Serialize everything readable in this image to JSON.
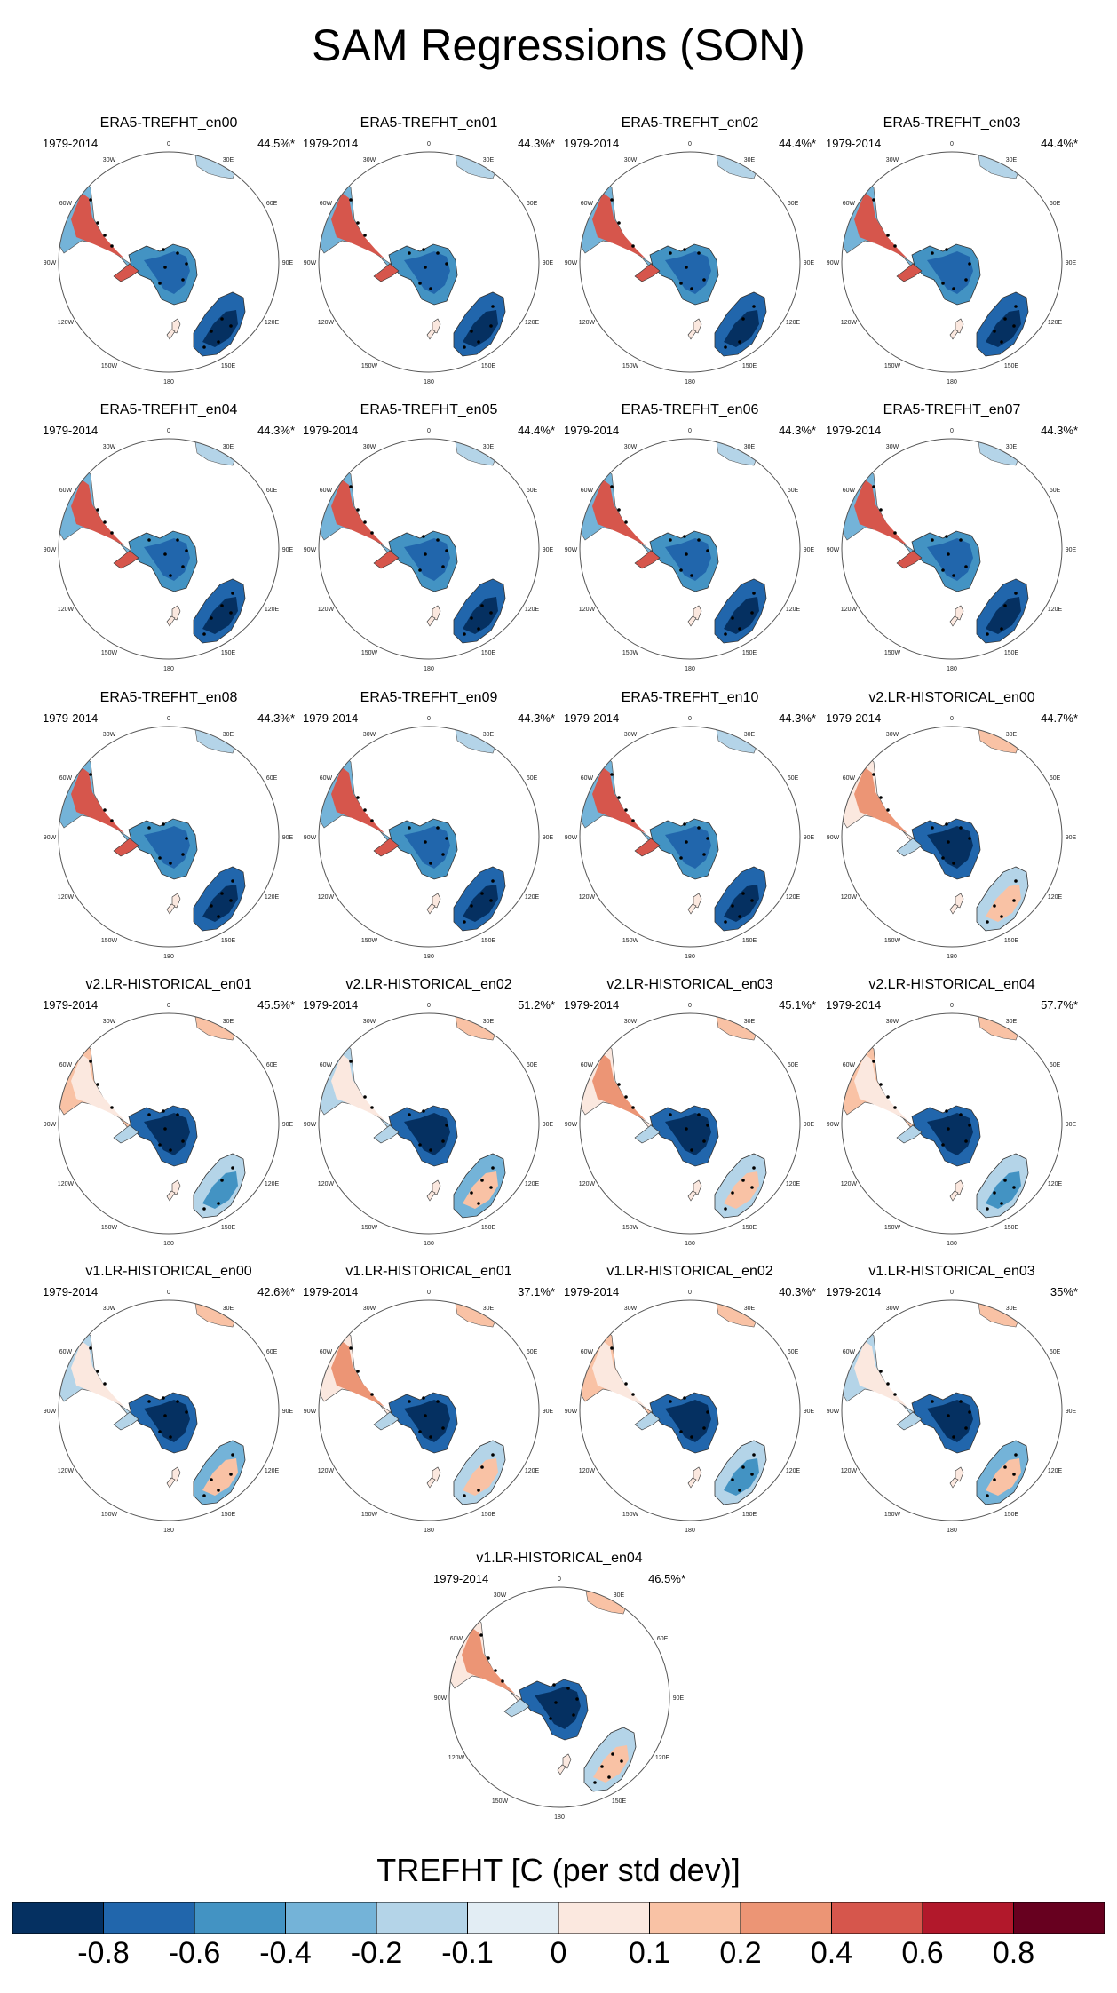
{
  "title": "SAM Regressions (SON)",
  "chart_data": {
    "type": "heatmap",
    "title": "SAM Regressions (SON)",
    "panels": [
      {
        "name": "ERA5-TREFHT_en00",
        "period": "1979-2014",
        "pct": "44.5%*",
        "variant": "era5"
      },
      {
        "name": "ERA5-TREFHT_en01",
        "period": "1979-2014",
        "pct": "44.3%*",
        "variant": "era5"
      },
      {
        "name": "ERA5-TREFHT_en02",
        "period": "1979-2014",
        "pct": "44.4%*",
        "variant": "era5"
      },
      {
        "name": "ERA5-TREFHT_en03",
        "period": "1979-2014",
        "pct": "44.4%*",
        "variant": "era5"
      },
      {
        "name": "ERA5-TREFHT_en04",
        "period": "1979-2014",
        "pct": "44.3%*",
        "variant": "era5"
      },
      {
        "name": "ERA5-TREFHT_en05",
        "period": "1979-2014",
        "pct": "44.4%*",
        "variant": "era5"
      },
      {
        "name": "ERA5-TREFHT_en06",
        "period": "1979-2014",
        "pct": "44.3%*",
        "variant": "era5"
      },
      {
        "name": "ERA5-TREFHT_en07",
        "period": "1979-2014",
        "pct": "44.3%*",
        "variant": "era5"
      },
      {
        "name": "ERA5-TREFHT_en08",
        "period": "1979-2014",
        "pct": "44.3%*",
        "variant": "era5"
      },
      {
        "name": "ERA5-TREFHT_en09",
        "period": "1979-2014",
        "pct": "44.3%*",
        "variant": "era5"
      },
      {
        "name": "ERA5-TREFHT_en10",
        "period": "1979-2014",
        "pct": "44.3%*",
        "variant": "era5"
      },
      {
        "name": "v2.LR-HISTORICAL_en00",
        "period": "1979-2014",
        "pct": "44.7%*",
        "variant": "model"
      },
      {
        "name": "v2.LR-HISTORICAL_en01",
        "period": "1979-2014",
        "pct": "45.5%*",
        "variant": "model"
      },
      {
        "name": "v2.LR-HISTORICAL_en02",
        "period": "1979-2014",
        "pct": "51.2%*",
        "variant": "model"
      },
      {
        "name": "v2.LR-HISTORICAL_en03",
        "period": "1979-2014",
        "pct": "45.1%*",
        "variant": "model"
      },
      {
        "name": "v2.LR-HISTORICAL_en04",
        "period": "1979-2014",
        "pct": "57.7%*",
        "variant": "model"
      },
      {
        "name": "v1.LR-HISTORICAL_en00",
        "period": "1979-2014",
        "pct": "42.6%*",
        "variant": "model"
      },
      {
        "name": "v1.LR-HISTORICAL_en01",
        "period": "1979-2014",
        "pct": "37.1%*",
        "variant": "model"
      },
      {
        "name": "v1.LR-HISTORICAL_en02",
        "period": "1979-2014",
        "pct": "40.3%*",
        "variant": "model"
      },
      {
        "name": "v1.LR-HISTORICAL_en03",
        "period": "1979-2014",
        "pct": "35%*",
        "variant": "model"
      },
      {
        "name": "v1.LR-HISTORICAL_en04",
        "period": "1979-2014",
        "pct": "46.5%*",
        "variant": "model"
      }
    ],
    "lon_labels": [
      "0",
      "30E",
      "60E",
      "90E",
      "120E",
      "150E",
      "180",
      "150W",
      "120W",
      "90W",
      "60W",
      "30W"
    ],
    "colorbar": {
      "title": "TREFHT [C (per std dev)]",
      "levels": [
        "-0.8",
        "-0.6",
        "-0.4",
        "-0.2",
        "-0.1",
        "0",
        "0.1",
        "0.2",
        "0.4",
        "0.6",
        "0.8"
      ],
      "colors": [
        "#053061",
        "#2166ac",
        "#4393c3",
        "#74b3d8",
        "#b4d4e8",
        "#e2edf4",
        "#fbe8df",
        "#f9c2a5",
        "#ec9575",
        "#d6564c",
        "#b2182b",
        "#67001f"
      ]
    }
  }
}
